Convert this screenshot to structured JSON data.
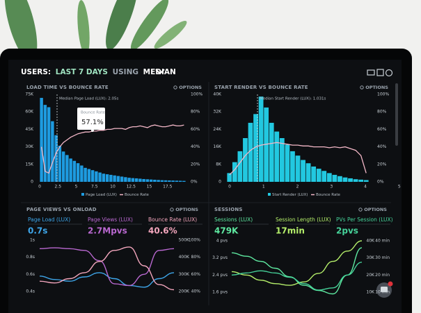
{
  "header": {
    "title_prefix": "USERS:",
    "title_range": "LAST 7 DAYS",
    "title_mid": "USING",
    "title_stat": "MEDIAN"
  },
  "panels": [
    {
      "title": "LOAD TIME VS BOUNCE RATE",
      "options": "OPTIONS",
      "left_ticks": [
        "75K",
        "60K",
        "45K",
        "30K",
        "15K",
        "0"
      ],
      "right_ticks": [
        "100%",
        "80%",
        "60%",
        "40%",
        "20%",
        "0%"
      ],
      "x_ticks": [
        "0",
        "2.5",
        "5",
        "7.5",
        "10",
        "12.5",
        "15",
        "17.5"
      ],
      "annotation": "Median Page Load (LUX): 2.05s",
      "tooltip_title": "Bounce Rate",
      "tooltip_value": "57.1%",
      "legend": [
        "Page Load (LUX)",
        "Bounce Rate"
      ],
      "bar_color": "#1e9be0",
      "line_color": "#f4b8c8",
      "ylim": [
        0,
        75
      ],
      "y2lim": [
        0,
        100
      ],
      "bars": [
        72,
        66,
        64,
        52,
        40,
        31,
        26,
        23,
        20,
        18,
        16,
        14,
        12,
        11,
        10,
        9,
        8,
        7,
        6.5,
        6,
        5.5,
        5,
        4.5,
        4,
        3.5,
        3.2,
        3,
        2.7,
        2.4,
        2.2,
        2,
        1.8,
        1.6,
        1.4,
        1.3,
        1.2,
        1.1,
        1,
        0.9,
        0.8
      ],
      "line": [
        40,
        12,
        10,
        22,
        33,
        40,
        45,
        48,
        51,
        53,
        55,
        56,
        57,
        57,
        58,
        58,
        59,
        59,
        60,
        60,
        61,
        61,
        61,
        60,
        62,
        63,
        63,
        64,
        63,
        62,
        64,
        65,
        64,
        63,
        63,
        64,
        65,
        64,
        64,
        65
      ]
    },
    {
      "title": "START RENDER VS BOUNCE RATE",
      "options": "OPTIONS",
      "left_ticks": [
        "40K",
        "32K",
        "24K",
        "16K",
        "8K",
        "0"
      ],
      "right_ticks": [
        "100%",
        "80%",
        "60%",
        "40%",
        "20%",
        "0%"
      ],
      "x_ticks": [
        "0",
        "1",
        "2",
        "3",
        "4",
        "5"
      ],
      "annotation": "Median Start Render (LUX): 1.031s",
      "legend": [
        "Start Render (LUX)",
        "Bounce Rate"
      ],
      "bar_color": "#22c8e0",
      "line_color": "#f4b8c8",
      "ylim": [
        0,
        40
      ],
      "y2lim": [
        0,
        100
      ],
      "bars": [
        4,
        9,
        14,
        20,
        27,
        31,
        39,
        34,
        27,
        23,
        20,
        17,
        14,
        12,
        10,
        8.5,
        7,
        6,
        5,
        4,
        3.2,
        2.6,
        2,
        1.6,
        1.2,
        1,
        0.8
      ],
      "line": [
        8,
        14,
        22,
        30,
        36,
        40,
        42,
        43,
        44,
        45,
        44,
        43,
        42,
        42,
        41,
        41,
        40,
        40,
        40,
        39,
        40,
        39,
        40,
        38,
        36,
        30,
        10
      ]
    },
    {
      "title": "PAGE VIEWS VS ONLOAD",
      "options": "OPTIONS",
      "metrics": [
        {
          "label": "Page Load (LUX)",
          "value": "0.7s",
          "color": "#3ea6ea"
        },
        {
          "label": "Page Views (LUX)",
          "value": "2.7Mpvs",
          "color": "#b968d0"
        },
        {
          "label": "Bounce Rate (LUX)",
          "value": "40.6%",
          "color": "#f3a6bd"
        }
      ],
      "left_ticks": [
        "1s",
        "0.8s",
        "0.6s",
        "0.4s"
      ],
      "right_ticks_a": [
        "500K",
        "400K",
        "300K",
        "200K"
      ],
      "right_ticks_b": [
        "100%",
        "80%",
        "60%",
        "40%"
      ],
      "series": [
        {
          "color": "#3ea6ea",
          "ylim": [
            0.4,
            1
          ],
          "values": [
            0.58,
            0.54,
            0.52,
            0.57,
            0.62,
            0.55,
            0.47,
            0.45,
            0.55,
            0.62
          ]
        },
        {
          "color": "#b968d0",
          "ylim": [
            200,
            500
          ],
          "values": [
            450,
            455,
            450,
            440,
            380,
            245,
            235,
            300,
            440,
            450
          ]
        },
        {
          "color": "#f3a6bd",
          "ylim": [
            40,
            100
          ],
          "values": [
            52,
            50,
            55,
            62,
            75,
            88,
            92,
            70,
            48,
            42
          ]
        }
      ]
    },
    {
      "title": "SESSIONS",
      "options": "OPTIONS",
      "metrics": [
        {
          "label": "Sessions (LUX)",
          "value": "479K",
          "color": "#5ee8a0"
        },
        {
          "label": "Session Length (LUX)",
          "value": "17min",
          "color": "#b4ee6a"
        },
        {
          "label": "PVs Per Session (LUX)",
          "value": "2pvs",
          "color": "#46d39a"
        }
      ],
      "left_ticks": [
        "4 pvs",
        "3.2 pvs",
        "2.4 pvs",
        "1.6 pvs"
      ],
      "right_ticks_a": [
        "40K",
        "30K",
        "20K",
        "10K"
      ],
      "right_ticks_b": [
        "40 min",
        "30 min",
        "20 min",
        "10 min"
      ],
      "series": [
        {
          "color": "#5ee8a0",
          "ylim": [
            10,
            40
          ],
          "values": [
            33,
            31,
            28,
            24,
            19,
            14,
            11,
            9,
            20,
            36
          ]
        },
        {
          "color": "#b4ee6a",
          "ylim": [
            10,
            40
          ],
          "values": [
            22,
            20,
            17,
            15,
            14,
            16,
            21,
            28,
            34,
            40
          ]
        },
        {
          "color": "#46d39a",
          "ylim": [
            1.6,
            4
          ],
          "values": [
            2.4,
            2.5,
            2.6,
            2.5,
            2.3,
            2.0,
            1.7,
            1.8,
            2.4,
            3.0
          ]
        }
      ]
    }
  ]
}
